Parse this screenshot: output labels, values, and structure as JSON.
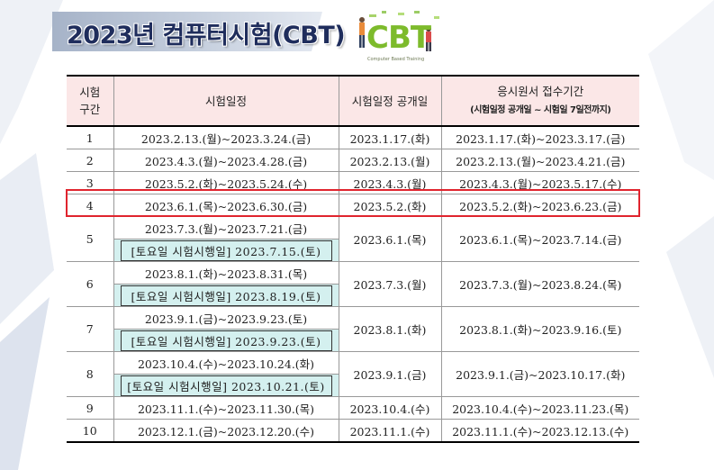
{
  "title": "2023년 컴퓨터시험(CBT)",
  "logo": {
    "text": "CBT",
    "subtitle": "Computer Based Training"
  },
  "table": {
    "headers": {
      "period_line1": "시험",
      "period_line2": "구간",
      "exam_dates": "시험일정",
      "release": "시험일정 공개일",
      "application": "응시원서 접수기간",
      "application_note": "(시험일정 공개일 ~ 시험일 7일전까지)"
    },
    "rows": [
      {
        "period": "1",
        "exam": "2023.2.13.(월)~2023.3.24.(금)",
        "release": "2023.1.17.(화)",
        "application": "2023.1.17.(화)~2023.3.17.(금)"
      },
      {
        "period": "2",
        "exam": "2023.4.3.(월)~2023.4.28.(금)",
        "release": "2023.2.13.(월)",
        "application": "2023.2.13.(월)~2023.4.21.(금)"
      },
      {
        "period": "3",
        "exam": "2023.5.2.(화)~2023.5.24.(수)",
        "release": "2023.4.3.(월)",
        "application": "2023.4.3.(월)~2023.5.17.(수)"
      },
      {
        "period": "4",
        "exam": "2023.6.1.(목)~2023.6.30.(금)",
        "release": "2023.5.2.(화)",
        "application": "2023.5.2.(화)~2023.6.23.(금)"
      },
      {
        "period": "5",
        "exam": "2023.7.3.(월)~2023.7.21.(금)",
        "saturday": "[토요일 시험시행일] 2023.7.15.(토)",
        "release": "2023.6.1.(목)",
        "application": "2023.6.1.(목)~2023.7.14.(금)"
      },
      {
        "period": "6",
        "exam": "2023.8.1.(화)~2023.8.31.(목)",
        "saturday": "[토요일 시험시행일] 2023.8.19.(토)",
        "release": "2023.7.3.(월)",
        "application": "2023.7.3.(월)~2023.8.24.(목)"
      },
      {
        "period": "7",
        "exam": "2023.9.1.(금)~2023.9.23.(토)",
        "saturday": "[토요일 시험시행일] 2023.9.23.(토)",
        "release": "2023.8.1.(화)",
        "application": "2023.8.1.(화)~2023.9.16.(토)"
      },
      {
        "period": "8",
        "exam": "2023.10.4.(수)~2023.10.24.(화)",
        "saturday": "[토요일 시험시행일] 2023.10.21.(토)",
        "release": "2023.9.1.(금)",
        "application": "2023.9.1.(금)~2023.10.17.(화)"
      },
      {
        "period": "9",
        "exam": "2023.11.1.(수)~2023.11.30.(목)",
        "release": "2023.10.4.(수)",
        "application": "2023.10.4.(수)~2023.11.23.(목)"
      },
      {
        "period": "10",
        "exam": "2023.12.1.(금)~2023.12.20.(수)",
        "release": "2023.11.1.(수)",
        "application": "2023.11.1.(수)~2023.12.13.(수)"
      }
    ]
  },
  "colors": {
    "title": "#1f2d5c",
    "header_bg": "#fbe7e7",
    "saturday_bg": "#d4f0ef",
    "highlight": "#e0242e",
    "logo_green": "#7dbb2c"
  }
}
